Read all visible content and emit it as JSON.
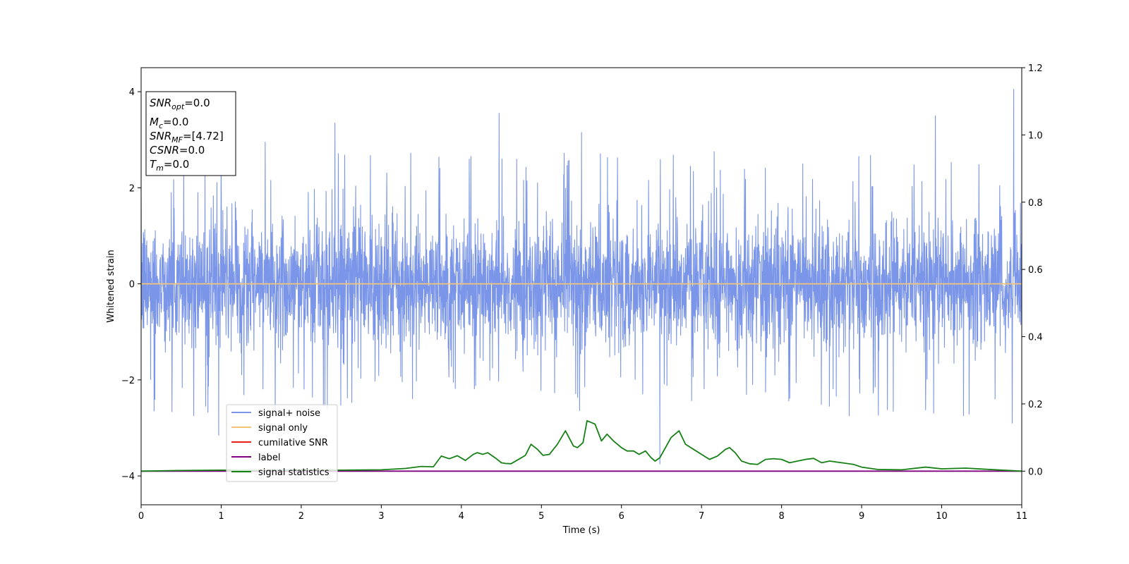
{
  "chart_data": {
    "type": "line",
    "title": "",
    "xlabel": "Time (s)",
    "ylabel": "Whitened strain",
    "ylabel_right": "",
    "xlim": [
      0,
      11
    ],
    "ylim": [
      -4.6,
      4.5
    ],
    "ylim_right": [
      -0.1,
      1.2
    ],
    "x_ticks": [
      0,
      1,
      2,
      3,
      4,
      5,
      6,
      7,
      8,
      9,
      10,
      11
    ],
    "y_ticks": [
      -4,
      -2,
      0,
      2,
      4
    ],
    "y_ticks_right": [
      0.0,
      0.2,
      0.4,
      0.6,
      0.8,
      1.0,
      1.2
    ],
    "y_tick_labels": [
      "−4",
      "−2",
      "0",
      "2",
      "4"
    ],
    "y_tick_labels_right": [
      "0.0",
      "0.2",
      "0.4",
      "0.6",
      "0.8",
      "1.0",
      "1.2"
    ],
    "grid": false,
    "legend_position": "bottom-left",
    "series": [
      {
        "name": "signal+ noise",
        "color": "#7b96e8",
        "axis": "left",
        "kind": "noise",
        "x_range": [
          0,
          11
        ],
        "typical_envelope": [
          -1.9,
          1.9
        ],
        "peaks": [
          {
            "x": 0.97,
            "y": -3.15
          },
          {
            "x": 1.55,
            "y": 2.95
          },
          {
            "x": 2.42,
            "y": 3.35
          },
          {
            "x": 4.47,
            "y": 3.55
          },
          {
            "x": 5.5,
            "y": 3.15
          },
          {
            "x": 6.48,
            "y": -3.75
          },
          {
            "x": 9.92,
            "y": 3.5
          },
          {
            "x": 10.9,
            "y": 4.05
          },
          {
            "x": 10.88,
            "y": -2.9
          }
        ]
      },
      {
        "name": "signal only",
        "color": "#f3c47a",
        "axis": "left",
        "x": [
          0,
          11
        ],
        "y": [
          0,
          0
        ]
      },
      {
        "name": "cumilative SNR",
        "color": "#e8201a",
        "axis": "left",
        "x": [],
        "y": []
      },
      {
        "name": "label",
        "color": "#7f007f",
        "axis": "right",
        "x": [
          0,
          11
        ],
        "y": [
          0,
          0
        ]
      },
      {
        "name": "signal statistics",
        "color": "#168016",
        "axis": "right",
        "x": [
          0.0,
          0.5,
          1.0,
          1.5,
          2.0,
          2.5,
          3.0,
          3.3,
          3.5,
          3.65,
          3.75,
          3.85,
          3.95,
          4.05,
          4.15,
          4.2,
          4.27,
          4.33,
          4.42,
          4.5,
          4.55,
          4.62,
          4.7,
          4.8,
          4.87,
          4.95,
          5.02,
          5.1,
          5.2,
          5.3,
          5.4,
          5.45,
          5.52,
          5.57,
          5.67,
          5.75,
          5.82,
          5.9,
          6.0,
          6.07,
          6.15,
          6.22,
          6.3,
          6.37,
          6.42,
          6.48,
          6.55,
          6.62,
          6.72,
          6.8,
          6.9,
          7.0,
          7.1,
          7.2,
          7.3,
          7.35,
          7.42,
          7.5,
          7.6,
          7.7,
          7.8,
          7.9,
          8.0,
          8.1,
          8.3,
          8.4,
          8.5,
          8.6,
          8.75,
          8.9,
          9.0,
          9.2,
          9.5,
          9.8,
          10.0,
          10.3,
          10.6,
          11.0
        ],
        "y": [
          0.0,
          0.002,
          0.003,
          0.002,
          0.003,
          0.003,
          0.004,
          0.008,
          0.014,
          0.013,
          0.045,
          0.037,
          0.046,
          0.032,
          0.05,
          0.055,
          0.05,
          0.055,
          0.04,
          0.025,
          0.023,
          0.022,
          0.033,
          0.047,
          0.08,
          0.065,
          0.047,
          0.05,
          0.08,
          0.12,
          0.075,
          0.07,
          0.085,
          0.15,
          0.14,
          0.09,
          0.11,
          0.09,
          0.07,
          0.06,
          0.06,
          0.05,
          0.06,
          0.04,
          0.03,
          0.04,
          0.07,
          0.1,
          0.12,
          0.08,
          0.065,
          0.05,
          0.035,
          0.045,
          0.065,
          0.07,
          0.055,
          0.03,
          0.022,
          0.02,
          0.035,
          0.037,
          0.035,
          0.025,
          0.035,
          0.038,
          0.025,
          0.03,
          0.025,
          0.02,
          0.012,
          0.005,
          0.004,
          0.012,
          0.007,
          0.009,
          0.005,
          0.0
        ]
      }
    ],
    "info_box": {
      "lines": [
        {
          "var": "SNR",
          "sub": "opt",
          "value": "=0.0"
        },
        {
          "var": "M",
          "sub": "c",
          "value": "=0.0"
        },
        {
          "var": "SNR",
          "sub": "MF",
          "value": "=[4.72]"
        },
        {
          "var": "CSNR",
          "sub": "",
          "value": "=0.0"
        },
        {
          "var": "T",
          "sub": "m",
          "value": "=0.0"
        }
      ]
    }
  }
}
